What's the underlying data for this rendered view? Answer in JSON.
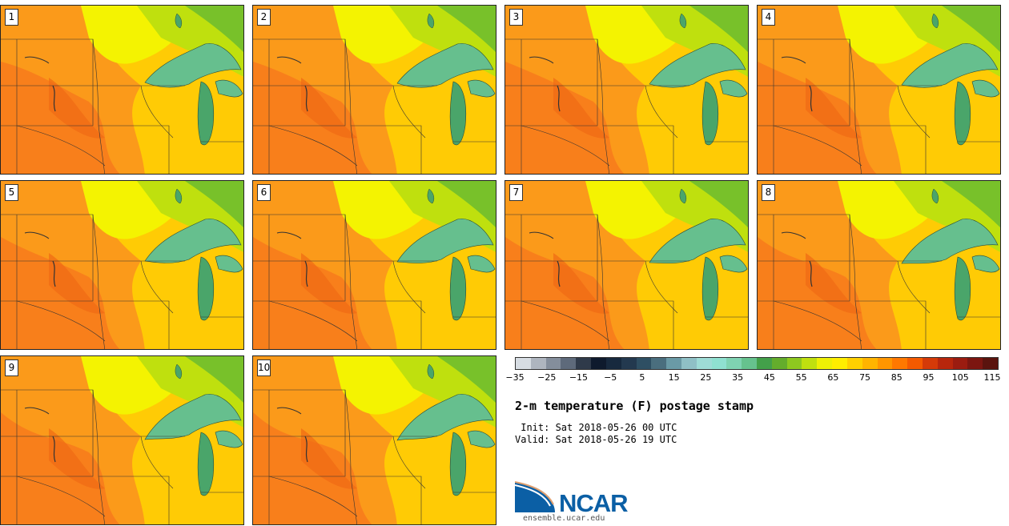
{
  "title": "2-m temperature (F) postage stamp",
  "init_label": " Init: Sat 2018-05-26 00 UTC",
  "valid_label": "Valid: Sat 2018-05-26 19 UTC",
  "logo": {
    "name": "NCAR",
    "url": "ensemble.ucar.edu"
  },
  "members": [
    "1",
    "2",
    "3",
    "4",
    "5",
    "6",
    "7",
    "8",
    "9",
    "10"
  ],
  "colorbar": {
    "ticks": [
      "−35",
      "−25",
      "−15",
      "−5",
      "5",
      "15",
      "25",
      "35",
      "45",
      "55",
      "65",
      "75",
      "85",
      "95",
      "105",
      "115"
    ],
    "colors": [
      "#d7dde3",
      "#aeb5bf",
      "#848e9c",
      "#5e6a7b",
      "#2f3a4a",
      "#0e1a2d",
      "#17293e",
      "#23394f",
      "#2e4f63",
      "#4a6e7e",
      "#6a9aa6",
      "#8fc0c6",
      "#9edcd6",
      "#8fe0d0",
      "#7fd3b2",
      "#66c28e",
      "#43a04a",
      "#64ad2c",
      "#8ec91f",
      "#c0e00f",
      "#eef005",
      "#ffee00",
      "#ffd000",
      "#ffb400",
      "#ff9600",
      "#ff7800",
      "#f55a00",
      "#d53a08",
      "#b8260c",
      "#9b1c10",
      "#7c1610",
      "#5a140e"
    ]
  },
  "map_colors": {
    "hot": "#f77a1c",
    "warm": "#fb9a1a",
    "mild": "#ffcb05",
    "cool": "#f4f301",
    "cooler": "#bfe00e",
    "cold": "#78c12a",
    "lake": "#66bf8e",
    "lake_cold": "#4aa56a"
  }
}
